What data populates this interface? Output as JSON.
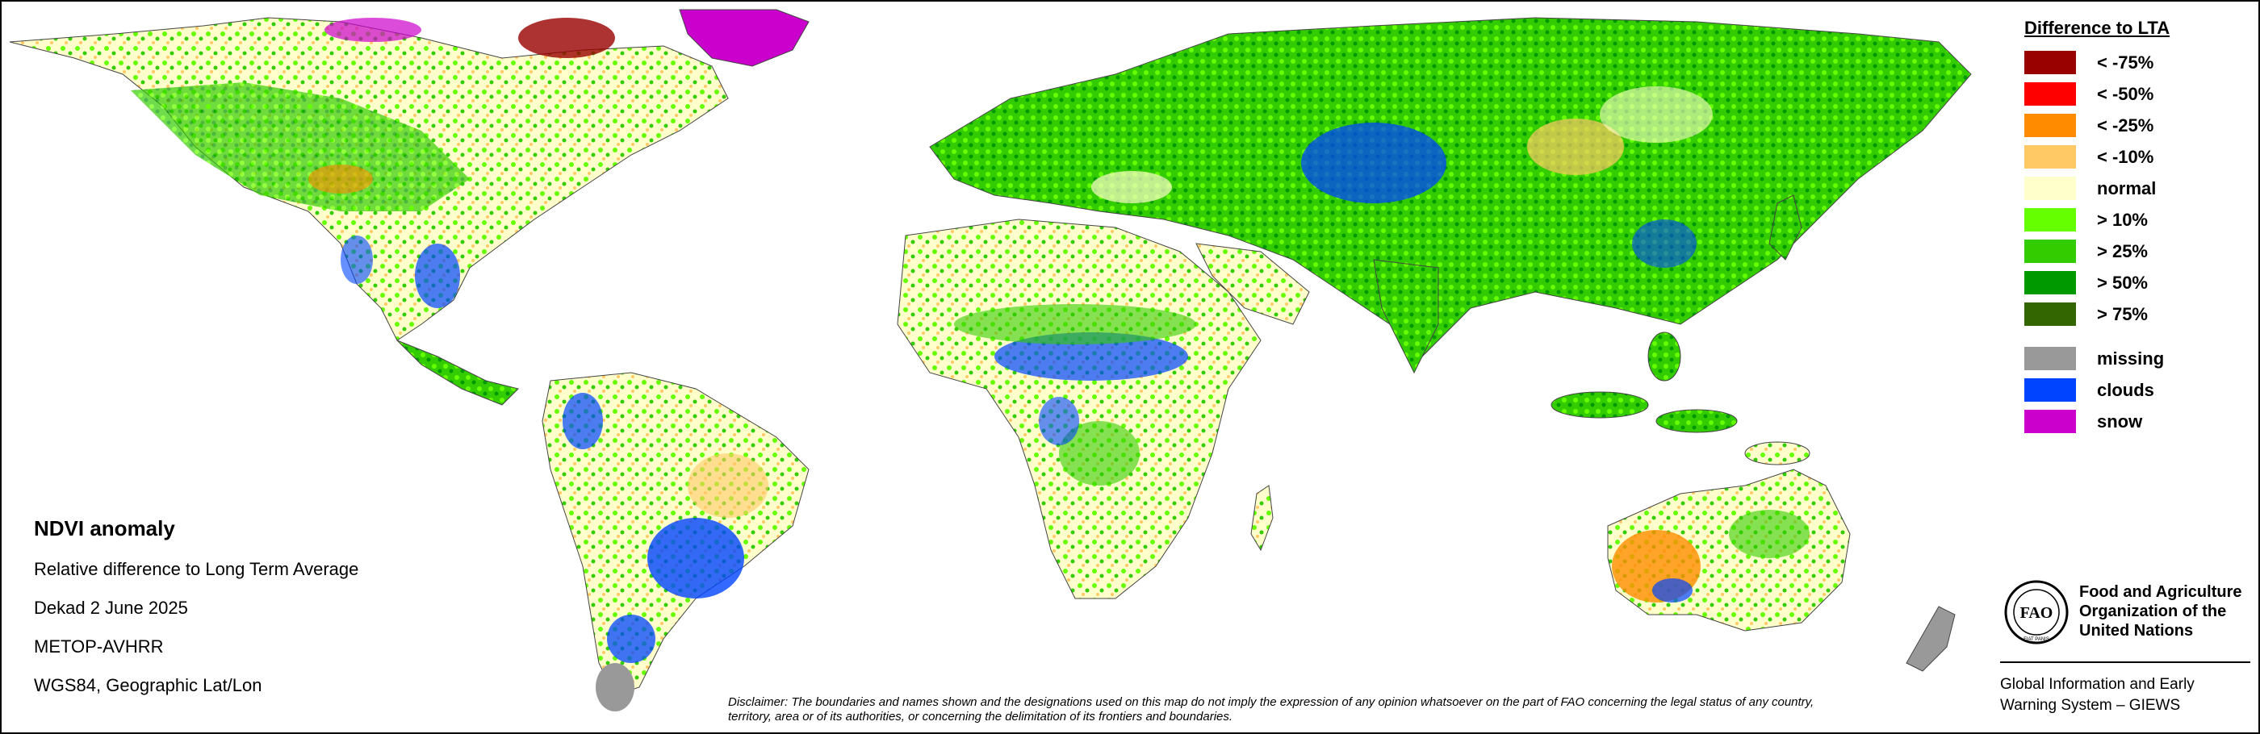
{
  "legend": {
    "title": "Difference to LTA",
    "items": [
      {
        "label": "< -75%",
        "color": "#990000"
      },
      {
        "label": "< -50%",
        "color": "#ff0000"
      },
      {
        "label": "< -25%",
        "color": "#ff8c00"
      },
      {
        "label": "< -10%",
        "color": "#ffc966"
      },
      {
        "label": "normal",
        "color": "#ffffcc"
      },
      {
        "label": "> 10%",
        "color": "#66ff00"
      },
      {
        "label": "> 25%",
        "color": "#33cc00"
      },
      {
        "label": "> 50%",
        "color": "#009900"
      },
      {
        "label": "> 75%",
        "color": "#336600"
      }
    ],
    "extra_items": [
      {
        "label": "missing",
        "color": "#999999"
      },
      {
        "label": "clouds",
        "color": "#0044ff"
      },
      {
        "label": "snow",
        "color": "#cc00cc"
      }
    ]
  },
  "info": {
    "title": "NDVI anomaly",
    "lines": [
      "Relative difference to Long Term Average",
      "Dekad 2 June 2025",
      "METOP-AVHRR",
      "WGS84, Geographic Lat/Lon"
    ]
  },
  "disclaimer": "Disclaimer: The boundaries and names shown and the designations used on this map do not imply the expression of any opinion whatsoever on the part of FAO concerning the legal status of any country, territory, area or of its authorities, or concerning the delimitation of its frontiers and boundaries.",
  "fao": {
    "logo_text": "FAO",
    "logo_motto": "FIAT PANIS",
    "name_lines": [
      "Food and Agriculture",
      "Organization of the",
      "United Nations"
    ],
    "system_lines": [
      "Global Information and Early",
      "Warning System – GIEWS"
    ]
  },
  "map": {
    "land_color": "#ffffcc",
    "land_green": "#33cc00",
    "land_dark_green": "#009900",
    "cloud_color": "#0044ff",
    "orange_color": "#ff8c00",
    "snow_color": "#cc00cc",
    "missing_color": "#999999",
    "border_color": "#222222"
  }
}
